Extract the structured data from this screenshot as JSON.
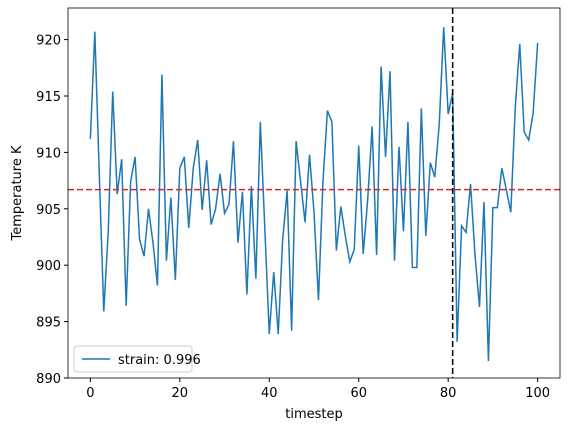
{
  "chart_data": {
    "type": "line",
    "x_label": "timestep",
    "y_label": "Temperature K",
    "x": [
      0,
      1,
      2,
      3,
      4,
      5,
      6,
      7,
      8,
      9,
      10,
      11,
      12,
      13,
      14,
      15,
      16,
      17,
      18,
      19,
      20,
      21,
      22,
      23,
      24,
      25,
      26,
      27,
      28,
      29,
      30,
      31,
      32,
      33,
      34,
      35,
      36,
      37,
      38,
      39,
      40,
      41,
      42,
      43,
      44,
      45,
      46,
      47,
      48,
      49,
      50,
      51,
      52,
      53,
      54,
      55,
      56,
      57,
      58,
      59,
      60,
      61,
      62,
      63,
      64,
      65,
      66,
      67,
      68,
      69,
      70,
      71,
      72,
      73,
      74,
      75,
      76,
      77,
      78,
      79,
      80,
      81,
      82,
      83,
      84,
      85,
      86,
      87,
      88,
      89,
      90,
      91,
      92,
      93,
      94,
      95,
      96,
      97,
      98,
      99,
      100
    ],
    "series": [
      {
        "name": "strain: 0.996",
        "color": "#1f77b4",
        "values": [
          911.2,
          920.7,
          908,
          895.9,
          903,
          915.4,
          906.3,
          909.4,
          896.4,
          907.4,
          909.6,
          902.3,
          900.8,
          905,
          902,
          898.2,
          916.9,
          900.4,
          906,
          898.7,
          908.6,
          909.6,
          903.3,
          908.6,
          911.1,
          904.9,
          909.3,
          903.6,
          905,
          908.1,
          904.6,
          905.4,
          911,
          902,
          906.5,
          897.4,
          907,
          898.8,
          912.7,
          903.3,
          893.9,
          899.4,
          893.9,
          902.3,
          906.6,
          894.2,
          911,
          907.4,
          903.8,
          909.8,
          904.7,
          896.9,
          907.4,
          913.7,
          912.7,
          901.3,
          905.2,
          902.6,
          900.3,
          901.4,
          910.6,
          901,
          905.8,
          912.3,
          900.9,
          917.6,
          909.6,
          917.2,
          900.4,
          910.5,
          903,
          912.7,
          899.8,
          899.8,
          913.9,
          902.6,
          909.1,
          907.8,
          912.5,
          921.1,
          913.4,
          915.3,
          893.2,
          903.5,
          902.9,
          907.2,
          900.9,
          896.3,
          905.6,
          891.5,
          905.1,
          905.1,
          908.6,
          906.7,
          904.7,
          914,
          919.6,
          911.8,
          911.1,
          913.5,
          919.7
        ]
      }
    ],
    "hline": {
      "value": 906.7,
      "color": "#d62728"
    },
    "vline": {
      "value": 81,
      "color": "#000000"
    },
    "xlim": [
      -5,
      105
    ],
    "ylim": [
      890,
      922.8
    ],
    "xticks": [
      0,
      20,
      40,
      60,
      80,
      100
    ],
    "yticks": [
      890,
      895,
      900,
      905,
      910,
      915,
      920
    ],
    "legend": "lower left"
  }
}
